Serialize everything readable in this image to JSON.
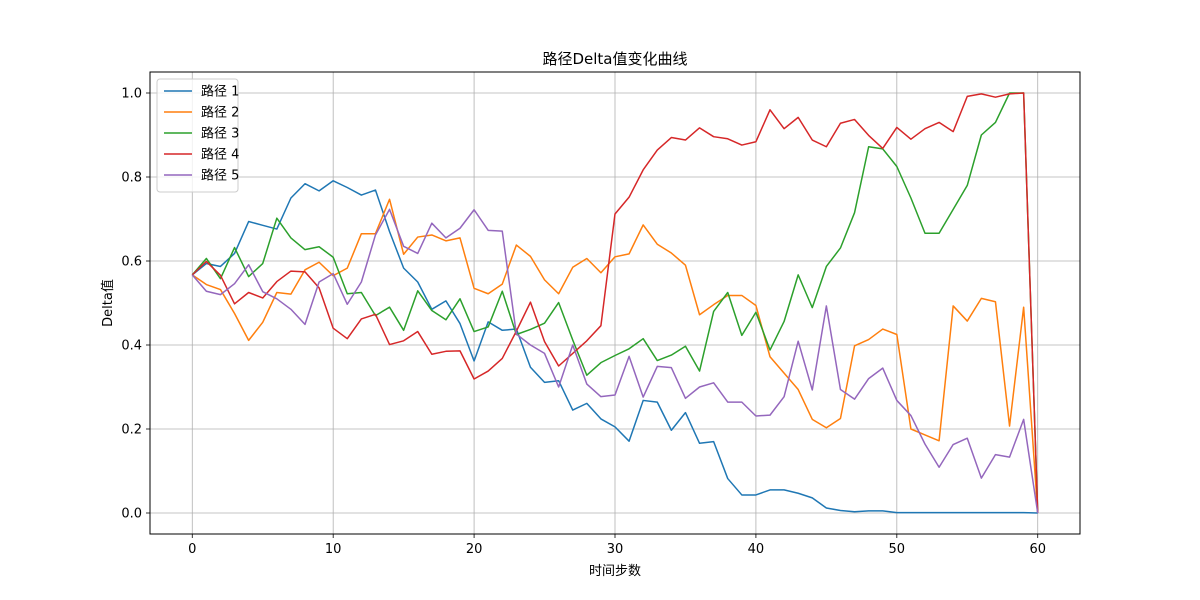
{
  "chart_data": {
    "type": "line",
    "title": "路径Delta值变化曲线",
    "xlabel": "时间步数",
    "ylabel": "Delta值",
    "xlim": [
      -3,
      63
    ],
    "ylim": [
      -0.05,
      1.05
    ],
    "xticks": [
      0,
      10,
      20,
      30,
      40,
      50,
      60
    ],
    "yticks": [
      0.0,
      0.2,
      0.4,
      0.6,
      0.8,
      1.0
    ],
    "grid": true,
    "legend_position": "top-left",
    "x": [
      0,
      1,
      2,
      3,
      4,
      5,
      6,
      7,
      8,
      9,
      10,
      11,
      12,
      13,
      14,
      15,
      16,
      17,
      18,
      19,
      20,
      21,
      22,
      23,
      24,
      25,
      26,
      27,
      28,
      29,
      30,
      31,
      32,
      33,
      34,
      35,
      36,
      37,
      38,
      39,
      40,
      41,
      42,
      43,
      44,
      45,
      46,
      47,
      48,
      49,
      50,
      51,
      52,
      53,
      54,
      55,
      56,
      57,
      58,
      59,
      60
    ],
    "series": [
      {
        "name": "路径 1",
        "color": "#1f77b4",
        "values": [
          0.567,
          0.594,
          0.587,
          0.618,
          0.694,
          0.685,
          0.676,
          0.75,
          0.784,
          0.767,
          0.791,
          0.775,
          0.757,
          0.769,
          0.67,
          0.583,
          0.55,
          0.485,
          0.505,
          0.451,
          0.362,
          0.455,
          0.435,
          0.438,
          0.347,
          0.311,
          0.315,
          0.245,
          0.261,
          0.224,
          0.205,
          0.171,
          0.268,
          0.264,
          0.197,
          0.239,
          0.166,
          0.17,
          0.082,
          0.043,
          0.043,
          0.055,
          0.055,
          0.047,
          0.036,
          0.012,
          0.006,
          0.003,
          0.005,
          0.005,
          0.001,
          0.001,
          0.001,
          0.001,
          0.001,
          0.001,
          0.001,
          0.001,
          0.001,
          0.001,
          0.0
        ]
      },
      {
        "name": "路径 2",
        "color": "#ff7f0e",
        "values": [
          0.567,
          0.544,
          0.532,
          0.475,
          0.411,
          0.454,
          0.525,
          0.521,
          0.579,
          0.597,
          0.565,
          0.583,
          0.665,
          0.665,
          0.747,
          0.616,
          0.657,
          0.662,
          0.648,
          0.655,
          0.535,
          0.522,
          0.545,
          0.638,
          0.611,
          0.555,
          0.522,
          0.585,
          0.606,
          0.572,
          0.61,
          0.617,
          0.686,
          0.64,
          0.619,
          0.59,
          0.472,
          0.496,
          0.518,
          0.518,
          0.494,
          0.372,
          0.333,
          0.294,
          0.223,
          0.203,
          0.225,
          0.398,
          0.413,
          0.438,
          0.425,
          0.2,
          0.186,
          0.172,
          0.493,
          0.457,
          0.511,
          0.503,
          0.207,
          0.49,
          0.0
        ]
      },
      {
        "name": "路径 3",
        "color": "#2ca02c",
        "values": [
          0.567,
          0.606,
          0.558,
          0.632,
          0.563,
          0.594,
          0.702,
          0.655,
          0.627,
          0.634,
          0.609,
          0.522,
          0.525,
          0.47,
          0.49,
          0.435,
          0.529,
          0.482,
          0.46,
          0.51,
          0.432,
          0.443,
          0.528,
          0.425,
          0.437,
          0.452,
          0.501,
          0.412,
          0.328,
          0.358,
          0.375,
          0.391,
          0.415,
          0.363,
          0.376,
          0.397,
          0.338,
          0.48,
          0.525,
          0.423,
          0.478,
          0.388,
          0.456,
          0.567,
          0.489,
          0.587,
          0.631,
          0.715,
          0.872,
          0.867,
          0.825,
          0.75,
          0.666,
          0.666,
          0.723,
          0.78,
          0.9,
          0.93,
          1.0,
          1.0,
          0.0
        ]
      },
      {
        "name": "路径 4",
        "color": "#d62728",
        "values": [
          0.567,
          0.599,
          0.566,
          0.498,
          0.525,
          0.512,
          0.551,
          0.576,
          0.574,
          0.536,
          0.44,
          0.415,
          0.462,
          0.473,
          0.401,
          0.41,
          0.432,
          0.378,
          0.385,
          0.386,
          0.319,
          0.338,
          0.368,
          0.433,
          0.502,
          0.408,
          0.35,
          0.38,
          0.41,
          0.446,
          0.712,
          0.752,
          0.817,
          0.864,
          0.894,
          0.888,
          0.917,
          0.896,
          0.891,
          0.876,
          0.884,
          0.96,
          0.915,
          0.942,
          0.888,
          0.872,
          0.928,
          0.937,
          0.899,
          0.868,
          0.918,
          0.89,
          0.915,
          0.93,
          0.908,
          0.992,
          0.998,
          0.99,
          0.998,
          1.0,
          0.0
        ]
      },
      {
        "name": "路径 5",
        "color": "#9467bd",
        "values": [
          0.567,
          0.528,
          0.52,
          0.546,
          0.591,
          0.527,
          0.51,
          0.485,
          0.449,
          0.55,
          0.57,
          0.497,
          0.55,
          0.662,
          0.723,
          0.635,
          0.618,
          0.69,
          0.655,
          0.678,
          0.722,
          0.673,
          0.671,
          0.426,
          0.4,
          0.38,
          0.3,
          0.4,
          0.307,
          0.277,
          0.281,
          0.373,
          0.276,
          0.349,
          0.346,
          0.273,
          0.3,
          0.31,
          0.264,
          0.264,
          0.231,
          0.233,
          0.277,
          0.409,
          0.293,
          0.493,
          0.294,
          0.271,
          0.32,
          0.345,
          0.268,
          0.232,
          0.164,
          0.109,
          0.163,
          0.178,
          0.083,
          0.139,
          0.133,
          0.223,
          0.0
        ]
      }
    ]
  }
}
